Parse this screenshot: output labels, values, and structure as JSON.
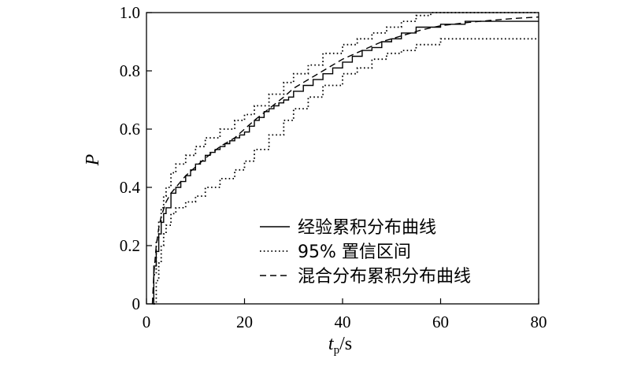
{
  "chart_data": {
    "type": "line",
    "title": "",
    "xlabel": {
      "main": "t",
      "sub": "p",
      "unit": "/s"
    },
    "ylabel": "P",
    "xlim": [
      0,
      80
    ],
    "ylim": [
      0,
      1.0
    ],
    "xticks": [
      0,
      20,
      40,
      60,
      80
    ],
    "yticks": [
      0,
      0.2,
      0.4,
      0.6,
      0.8,
      1.0
    ],
    "xtick_labels": [
      "0",
      "20",
      "40",
      "60",
      "80"
    ],
    "ytick_labels": [
      "0",
      "0.2",
      "0.4",
      "0.6",
      "0.8",
      "1.0"
    ],
    "grid": false,
    "legend_position": "bottom-right",
    "series": [
      {
        "name": "经验累积分布曲线",
        "style": "solid",
        "step": true,
        "x": [
          1.2,
          1.5,
          2,
          2.5,
          3,
          3.5,
          4,
          5,
          6,
          7,
          8,
          9,
          10,
          11,
          12,
          13,
          14,
          15,
          16,
          17,
          18,
          19,
          20,
          21,
          22,
          23,
          24,
          25,
          26,
          27,
          28,
          29,
          30,
          32,
          34,
          36,
          38,
          40,
          42,
          44,
          46,
          48,
          50,
          52,
          55,
          60,
          65,
          80
        ],
        "y": [
          0.0,
          0.13,
          0.18,
          0.24,
          0.28,
          0.31,
          0.33,
          0.38,
          0.4,
          0.42,
          0.44,
          0.46,
          0.48,
          0.49,
          0.51,
          0.52,
          0.53,
          0.54,
          0.55,
          0.56,
          0.57,
          0.58,
          0.59,
          0.61,
          0.63,
          0.64,
          0.66,
          0.67,
          0.68,
          0.69,
          0.7,
          0.71,
          0.73,
          0.75,
          0.77,
          0.79,
          0.81,
          0.83,
          0.85,
          0.87,
          0.88,
          0.9,
          0.91,
          0.93,
          0.95,
          0.96,
          0.97,
          0.97
        ]
      },
      {
        "name": "95% 置信区间",
        "style": "dotted",
        "step": true,
        "x": [
          1.5,
          2,
          2.5,
          3,
          3.5,
          4,
          5,
          6,
          8,
          10,
          12,
          15,
          18,
          20,
          22,
          25,
          28,
          30,
          33,
          36,
          40,
          43,
          46,
          49,
          52,
          55,
          58,
          60,
          80
        ],
        "y": [
          0.1,
          0.22,
          0.28,
          0.33,
          0.37,
          0.4,
          0.45,
          0.48,
          0.51,
          0.54,
          0.57,
          0.6,
          0.63,
          0.65,
          0.68,
          0.72,
          0.76,
          0.79,
          0.82,
          0.86,
          0.89,
          0.91,
          0.93,
          0.95,
          0.97,
          0.99,
          1.0,
          1.0,
          1.0
        ]
      },
      {
        "name": "",
        "style": "dotted",
        "step": true,
        "x": [
          1.5,
          2,
          2.5,
          3,
          3.5,
          4,
          5,
          6,
          8,
          10,
          12,
          15,
          18,
          20,
          22,
          25,
          28,
          30,
          33,
          36,
          40,
          43,
          46,
          49,
          52,
          55,
          60,
          80
        ],
        "y": [
          0.0,
          0.08,
          0.14,
          0.2,
          0.24,
          0.27,
          0.31,
          0.33,
          0.35,
          0.37,
          0.4,
          0.43,
          0.46,
          0.49,
          0.53,
          0.58,
          0.63,
          0.67,
          0.71,
          0.75,
          0.79,
          0.81,
          0.84,
          0.86,
          0.87,
          0.89,
          0.91,
          0.91
        ]
      },
      {
        "name": "混合分布累积分布曲线",
        "style": "dashed",
        "step": false,
        "x": [
          1.2,
          1.5,
          2,
          2.5,
          3,
          4,
          5,
          6,
          8,
          10,
          12,
          15,
          18,
          20,
          22,
          25,
          28,
          30,
          33,
          36,
          40,
          44,
          48,
          52,
          56,
          60,
          65,
          70,
          75,
          80
        ],
        "y": [
          0.0,
          0.1,
          0.2,
          0.26,
          0.3,
          0.35,
          0.38,
          0.4,
          0.44,
          0.47,
          0.5,
          0.54,
          0.57,
          0.6,
          0.63,
          0.67,
          0.71,
          0.74,
          0.77,
          0.8,
          0.84,
          0.87,
          0.9,
          0.92,
          0.94,
          0.955,
          0.965,
          0.973,
          0.98,
          0.985
        ]
      }
    ]
  }
}
